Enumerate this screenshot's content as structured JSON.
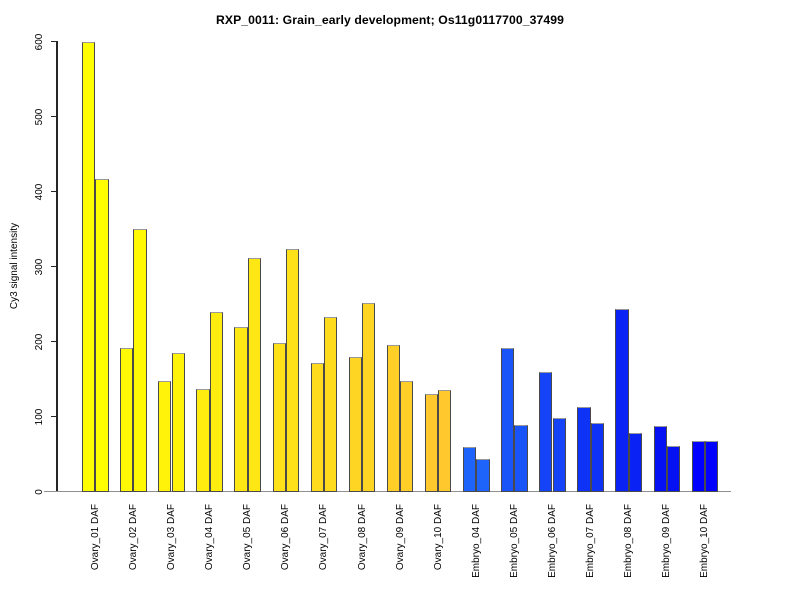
{
  "chart_data": {
    "type": "bar",
    "title": "RXP_0011: Grain_early development; Os11g0117700_37499",
    "xlabel": "",
    "ylabel": "Cy3 signal intensity",
    "ylim": [
      0,
      600
    ],
    "yticks": [
      0,
      100,
      200,
      300,
      400,
      500,
      600
    ],
    "grid": false,
    "legend_position": "none",
    "groups": [
      {
        "category": "Ovary_01 DAF",
        "color": "#FFFF00",
        "values": [
          600,
          417
        ]
      },
      {
        "category": "Ovary_02 DAF",
        "color": "#FFF905",
        "values": [
          192,
          350
        ]
      },
      {
        "category": "Ovary_03 DAF",
        "color": "#FFF30A",
        "values": [
          148,
          185
        ]
      },
      {
        "category": "Ovary_04 DAF",
        "color": "#FFED0F",
        "values": [
          137,
          240
        ]
      },
      {
        "category": "Ovary_05 DAF",
        "color": "#FFE714",
        "values": [
          220,
          312
        ]
      },
      {
        "category": "Ovary_06 DAF",
        "color": "#FFE119",
        "values": [
          198,
          324
        ]
      },
      {
        "category": "Ovary_07 DAF",
        "color": "#FFDB1E",
        "values": [
          171,
          233
        ]
      },
      {
        "category": "Ovary_08 DAF",
        "color": "#FFD523",
        "values": [
          180,
          251
        ]
      },
      {
        "category": "Ovary_09 DAF",
        "color": "#FFCF28",
        "values": [
          196,
          148
        ]
      },
      {
        "category": "Ovary_10 DAF",
        "color": "#FFC92D",
        "values": [
          130,
          135
        ]
      },
      {
        "category": "Embryo_04 DAF",
        "color": "#1E64FB",
        "values": [
          60,
          44
        ]
      },
      {
        "category": "Embryo_05 DAF",
        "color": "#1954F9",
        "values": [
          192,
          89
        ]
      },
      {
        "category": "Embryo_06 DAF",
        "color": "#1443F8",
        "values": [
          160,
          98
        ]
      },
      {
        "category": "Embryo_07 DAF",
        "color": "#0F33F6",
        "values": [
          113,
          92
        ]
      },
      {
        "category": "Embryo_08 DAF",
        "color": "#0A22F4",
        "values": [
          243,
          78
        ]
      },
      {
        "category": "Embryo_09 DAF",
        "color": "#0511F2",
        "values": [
          88,
          61
        ]
      },
      {
        "category": "Embryo_10 DAF",
        "color": "#0000FF",
        "values": [
          67,
          67
        ]
      }
    ]
  },
  "colors": {
    "background": "#FFFFFF",
    "axis": "#262626",
    "baseline": "#909090",
    "bar_border": "#4A4A4A",
    "bar_border_top": "#999999",
    "text": "#000000"
  }
}
